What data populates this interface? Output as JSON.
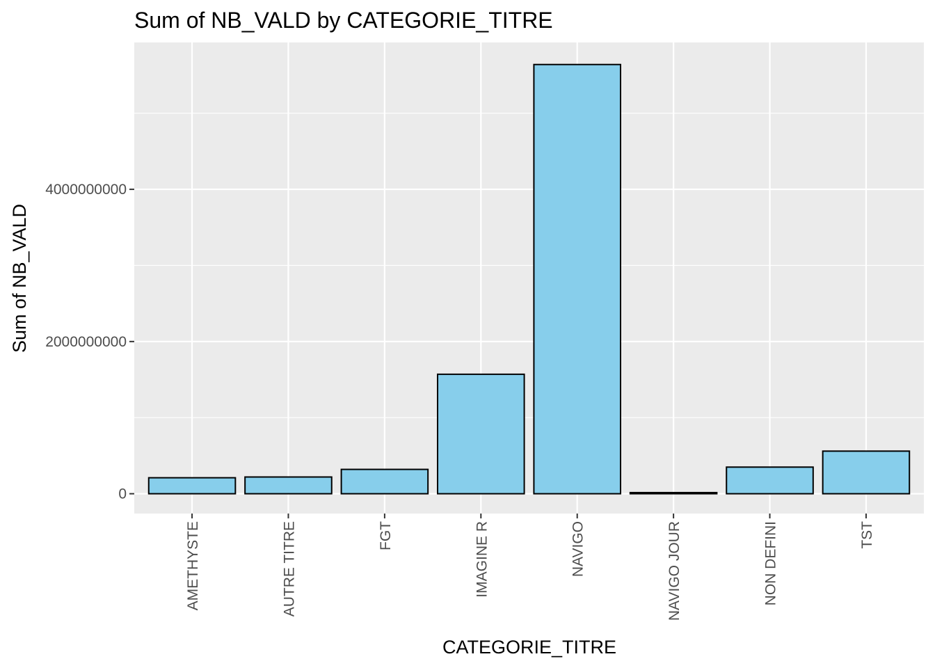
{
  "chart_data": {
    "type": "bar",
    "title": "Sum of NB_VALD by CATEGORIE_TITRE",
    "xlabel": "CATEGORIE_TITRE",
    "ylabel": "Sum of NB_VALD",
    "categories": [
      "AMETHYSTE",
      "AUTRE TITRE",
      "FGT",
      "IMAGINE R",
      "NAVIGO",
      "NAVIGO JOUR",
      "NON DEFINI",
      "TST"
    ],
    "values": [
      210000000,
      220000000,
      320000000,
      1570000000,
      5640000000,
      15000000,
      350000000,
      560000000
    ],
    "yticks": [
      0,
      2000000000,
      4000000000
    ],
    "ytick_labels": [
      "0",
      "2000000000",
      "4000000000"
    ],
    "ylim": [
      -260000000,
      5930000000
    ],
    "grid": true,
    "bar_color": "#87ceeb",
    "bar_outline": "#000000",
    "panel_background": "#ebebeb",
    "grid_color": "#ffffff"
  }
}
